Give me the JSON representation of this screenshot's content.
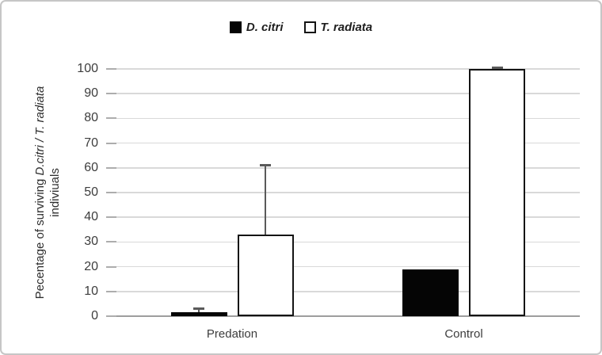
{
  "figure": {
    "y_axis_title": {
      "prefix": "Pecentage of surviving ",
      "italic": "D.citri / T. radiata",
      "line2": "indiviuals"
    }
  },
  "chart_data": {
    "type": "bar",
    "categories": [
      "Predation",
      "Control"
    ],
    "series": [
      {
        "name": "D. citri",
        "fill": "#050505",
        "border": "#050505",
        "border_width": 1,
        "values": [
          1.5,
          19
        ],
        "errors_plus": [
          1.4,
          0
        ]
      },
      {
        "name": "T. radiata",
        "fill": "#ffffff",
        "border": "#141414",
        "border_width": 2.5,
        "values": [
          33,
          100
        ],
        "errors_plus": [
          28,
          0.5
        ]
      }
    ],
    "ylabel": "Pecentage of surviving D.citri / T. radiata indiviuals",
    "ylim": [
      0,
      100
    ],
    "yticks": [
      0,
      10,
      20,
      30,
      40,
      50,
      60,
      70,
      80,
      90,
      100
    ],
    "grid": "horizontal",
    "legend_position": "top",
    "error_bar_color": "#5a5a5a"
  },
  "colors": {
    "gridline": "#d9d9d9",
    "axis_line": "#9e9e9e",
    "tick": "#adadad",
    "text": "#3d3d3d",
    "figure_border": "#c6c6c6"
  }
}
